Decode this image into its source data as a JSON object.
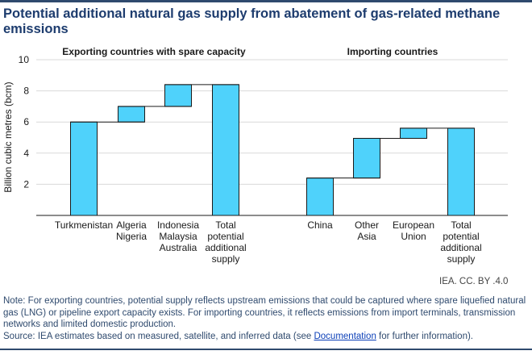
{
  "title": "Potential additional natural gas supply from abatement of gas-related methane emissions",
  "credit": "IEA. CC. BY .4.0",
  "note": "Note: For exporting countries, potential supply reflects upstream emissions that could be captured where spare liquefied natural gas (LNG) or pipeline export capacity exists. For importing countries, it reflects emissions from import terminals, transmission networks and limited domestic production.",
  "source": {
    "prefix": "Source: IEA estimates based on measured, satellite, and inferred data (see ",
    "link": "Documentation",
    "suffix": " for further information)."
  },
  "colors": {
    "bar": "#4fd2fb",
    "stroke": "#1a1a1a",
    "grid": "#d9d9d9",
    "title": "#1d3c6e",
    "note": "#2f4a6e"
  },
  "chart_data": {
    "type": "bar",
    "subtype": "waterfall",
    "ylabel": "Billion cubic metres (bcm)",
    "ylim": [
      0,
      10
    ],
    "yticks": [
      2,
      4,
      6,
      8,
      10
    ],
    "grid": true,
    "panels": [
      {
        "title": "Exporting countries with spare capacity",
        "categories": [
          "Turkmenistan",
          "Algeria\nNigeria",
          "Indonesia\nMalaysia\nAustralia",
          "Total\npotential\nadditional\nsupply"
        ],
        "increments": [
          6.0,
          1.0,
          1.4
        ],
        "total": 8.4
      },
      {
        "title": "Importing countries",
        "categories": [
          "China",
          "Other\nAsia",
          "European\nUnion",
          "Total\npotential\nadditional\nsupply"
        ],
        "increments": [
          2.4,
          2.55,
          0.65
        ],
        "total": 5.6
      }
    ]
  }
}
